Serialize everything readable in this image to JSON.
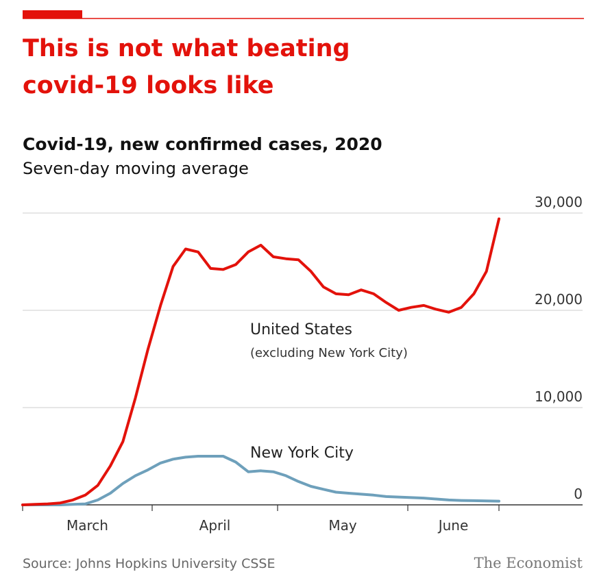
{
  "chart_data": {
    "type": "line",
    "title_lines": [
      "This is not what beating",
      "covid-19 looks like"
    ],
    "subtitle": "Covid-19, new confirmed cases, 2020",
    "subtitle2": "Seven-day moving average",
    "x_axis_labels": [
      "March",
      "April",
      "May",
      "June"
    ],
    "series": [
      {
        "name": "United States",
        "note": "(excluding New York City)",
        "color": "#e3120b",
        "values": [
          0,
          50,
          100,
          200,
          500,
          1000,
          2000,
          4000,
          6500,
          11000,
          16000,
          20500,
          24500,
          26300,
          26000,
          24300,
          24200,
          24700,
          26000,
          26700,
          25500,
          25300,
          25200,
          24000,
          22400,
          21700,
          21600,
          22100,
          21700,
          20800,
          20000,
          20300,
          20500,
          20100,
          19800,
          20300,
          21700,
          24000,
          29400
        ]
      },
      {
        "name": "New York City",
        "color": "#6ea0bb",
        "values": [
          0,
          0,
          0,
          0,
          50,
          100,
          500,
          1200,
          2200,
          3000,
          3600,
          4300,
          4700,
          4900,
          5000,
          5000,
          5000,
          4400,
          3400,
          3500,
          3400,
          3000,
          2400,
          1900,
          1600,
          1300,
          1200,
          1100,
          1000,
          850,
          800,
          750,
          700,
          600,
          500,
          450,
          430,
          400,
          380
        ]
      }
    ],
    "ylim": [
      0,
      30000
    ],
    "yticks": [
      0,
      {
        "value": 10000,
        "label": "10,000"
      },
      {
        "value": 20000,
        "label": "20,000"
      },
      {
        "value": 30000,
        "label": "30,000"
      }
    ],
    "grid": true,
    "source": "Source: Johns Hopkins University CSSE",
    "brand": "The Economist"
  }
}
